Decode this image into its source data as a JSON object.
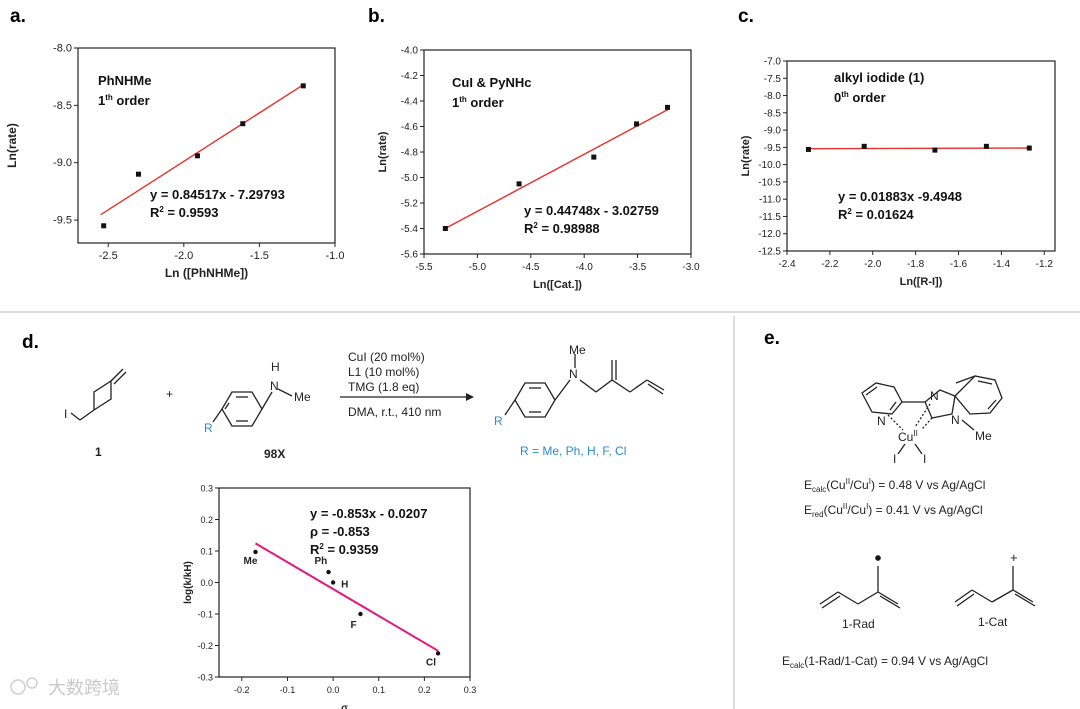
{
  "panels": {
    "a": "a.",
    "b": "b.",
    "c": "c.",
    "d": "d.",
    "e": "e."
  },
  "colors": {
    "fit_red": "#e8322c",
    "fit_pink": "#e5197d",
    "blue_text": "#2a8bd0",
    "point": "#111111"
  },
  "chart_data": [
    {
      "id": "a",
      "type": "scatter",
      "annotation_title": "PhNHMe",
      "order_label": {
        "prefix": "1",
        "sup": "th",
        "suffix": " order"
      },
      "xlabel": "Ln ([PhNHMe])",
      "ylabel": "Ln(rate)",
      "xlim": [
        -2.7,
        -1.0
      ],
      "ylim": [
        -9.7,
        -8.0
      ],
      "xticks": [
        -2.5,
        -2.0,
        -1.5,
        -1.0
      ],
      "xtick_labels": [
        "-2.5",
        "-2.0",
        "-1.5",
        "-1.0"
      ],
      "yticks": [
        -9.5,
        -9.0,
        -8.5,
        -8.0
      ],
      "ytick_labels": [
        "-9.5",
        "-9.0",
        "-8.5",
        "-8.0"
      ],
      "points": [
        [
          -2.53,
          -9.55
        ],
        [
          -2.3,
          -9.1
        ],
        [
          -1.91,
          -8.94
        ],
        [
          -1.61,
          -8.66
        ],
        [
          -1.21,
          -8.33
        ]
      ],
      "fit": {
        "slope": 0.84517,
        "intercept": -7.29793,
        "x_range": [
          -2.55,
          -1.2
        ]
      },
      "equation": "y = 0.84517x - 7.29793",
      "r2": {
        "prefix": "R",
        "sup": "2",
        "value": " = 0.9593"
      }
    },
    {
      "id": "b",
      "type": "scatter",
      "annotation_title": "CuI & PyNHc",
      "order_label": {
        "prefix": "1",
        "sup": "th",
        "suffix": " order"
      },
      "xlabel": "Ln([Cat.])",
      "ylabel": "Ln(rate)",
      "xlim": [
        -5.5,
        -3.0
      ],
      "ylim": [
        -5.6,
        -4.0
      ],
      "xticks": [
        -5.5,
        -5.0,
        -4.5,
        -4.0,
        -3.5,
        -3.0
      ],
      "xtick_labels": [
        "-5.5",
        "-5.0",
        "-4.5",
        "-4.0",
        "-3.5",
        "-3.0"
      ],
      "yticks": [
        -5.6,
        -5.4,
        -5.2,
        -5.0,
        -4.8,
        -4.6,
        -4.4,
        -4.2,
        -4.0
      ],
      "ytick_labels": [
        "-5.6",
        "-5.4",
        "-5.2",
        "-5.0",
        "-4.8",
        "-4.6",
        "-4.4",
        "-4.2",
        "-4.0"
      ],
      "points": [
        [
          -5.3,
          -5.4
        ],
        [
          -4.61,
          -5.05
        ],
        [
          -3.91,
          -4.84
        ],
        [
          -3.51,
          -4.58
        ],
        [
          -3.22,
          -4.45
        ]
      ],
      "fit": {
        "slope": 0.44748,
        "intercept": -3.02759,
        "x_range": [
          -5.3,
          -3.2
        ]
      },
      "equation": "y = 0.44748x - 3.02759",
      "r2": {
        "prefix": "R",
        "sup": "2",
        "value": " = 0.98988"
      }
    },
    {
      "id": "c",
      "type": "scatter",
      "annotation_title": "alkyl iodide (1)",
      "order_label": {
        "prefix": "0",
        "sup": "th",
        "suffix": " order"
      },
      "xlabel": "Ln([R-I])",
      "ylabel": "Ln(rate)",
      "xlim": [
        -2.4,
        -1.15
      ],
      "ylim": [
        -12.5,
        -7.0
      ],
      "xticks": [
        -2.4,
        -2.2,
        -2.0,
        -1.8,
        -1.6,
        -1.4,
        -1.2
      ],
      "xtick_labels": [
        "-2.4",
        "-2.2",
        "-2.0",
        "-1.8",
        "-1.6",
        "-1.4",
        "-1.2"
      ],
      "yticks": [
        -12.5,
        -12.0,
        -11.5,
        -11.0,
        -10.5,
        -10.0,
        -9.5,
        -9.0,
        -8.5,
        -8.0,
        -7.5,
        -7.0
      ],
      "ytick_labels": [
        "-12.5",
        "-12.0",
        "-11.5",
        "-11.0",
        "-10.5",
        "-10.0",
        "-9.5",
        "-9.0",
        "-8.5",
        "-8.0",
        "-7.5",
        "-7.0"
      ],
      "points": [
        [
          -2.3,
          -9.56
        ],
        [
          -2.04,
          -9.47
        ],
        [
          -1.71,
          -9.58
        ],
        [
          -1.47,
          -9.47
        ],
        [
          -1.27,
          -9.52
        ]
      ],
      "fit": {
        "slope": 0.01883,
        "intercept": -9.4948,
        "x_range": [
          -2.3,
          -1.27
        ]
      },
      "equation": "y = 0.01883x -9.4948",
      "r2": {
        "prefix": "R",
        "sup": "2",
        "value": " = 0.01624"
      }
    },
    {
      "id": "d",
      "type": "scatter",
      "xlabel": "σ",
      "ylabel": "log(k/kH)",
      "xlim": [
        -0.25,
        0.3
      ],
      "ylim": [
        -0.3,
        0.3
      ],
      "xticks": [
        -0.2,
        -0.1,
        0.0,
        0.1,
        0.2,
        0.3
      ],
      "xtick_labels": [
        "-0.2",
        "-0.1",
        "0.0",
        "0.1",
        "0.2",
        "0.3"
      ],
      "yticks": [
        -0.3,
        -0.2,
        -0.1,
        0.0,
        0.1,
        0.2,
        0.3
      ],
      "ytick_labels": [
        "-0.3",
        "-0.2",
        "-0.1",
        "0.0",
        "0.1",
        "0.2",
        "0.3"
      ],
      "points": [
        [
          -0.17,
          0.097
        ],
        [
          -0.01,
          0.033
        ],
        [
          0.0,
          0.0
        ],
        [
          0.06,
          -0.1
        ],
        [
          0.23,
          -0.225
        ]
      ],
      "point_labels": [
        "Me",
        "Ph",
        "H",
        "F",
        "Cl"
      ],
      "fit": {
        "slope": -0.853,
        "intercept": -0.0207,
        "x_range": [
          -0.17,
          0.23
        ]
      },
      "equation": "y = -0.853x - 0.0207",
      "rho": "ρ = -0.853",
      "r2": {
        "prefix": "R",
        "sup": "2",
        "value": " = 0.9359"
      }
    }
  ],
  "scheme_d": {
    "reactant1_label": "1",
    "plus": "+",
    "reactant2_label": "98X",
    "nh_h": "H",
    "nh_n": "N",
    "nh_me": "Me",
    "r_label": "R",
    "product_n": "N",
    "product_me": "Me",
    "product_r": "R",
    "conditions": [
      "CuI (20 mol%)",
      "L1 (10 mol%)",
      "TMG (1.8 eq)"
    ],
    "conditions_below": "DMA, r.t., 410 nm",
    "product_substituents": "R = Me, Ph, H, F, Cl"
  },
  "scheme_e": {
    "n1": "N",
    "n2": "N",
    "n3": "N",
    "me": "Me",
    "cu": "Cu",
    "cu_sup": "II",
    "i1": "I",
    "i2": "I",
    "e_calc": {
      "e": "E",
      "sub": "calc",
      "text1": "(Cu",
      "sup1": "II",
      "text2": "/Cu",
      "sup2": "I",
      "text3": ") = 0.48 V vs Ag/AgCl"
    },
    "e_red": {
      "e": "E",
      "sub": "red",
      "text1": "(Cu",
      "sup1": "II",
      "text2": "/Cu",
      "sup2": "I",
      "text3": ") = 0.41 V vs Ag/AgCl"
    },
    "rad_label": "1-Rad",
    "cat_label": "1-Cat",
    "cat_charge": "+",
    "e_calc2": {
      "e": "E",
      "sub": "calc",
      "text": "(1-Rad/1-Cat) = 0.94 V vs Ag/AgCl"
    }
  },
  "watermark": "大数跨境"
}
